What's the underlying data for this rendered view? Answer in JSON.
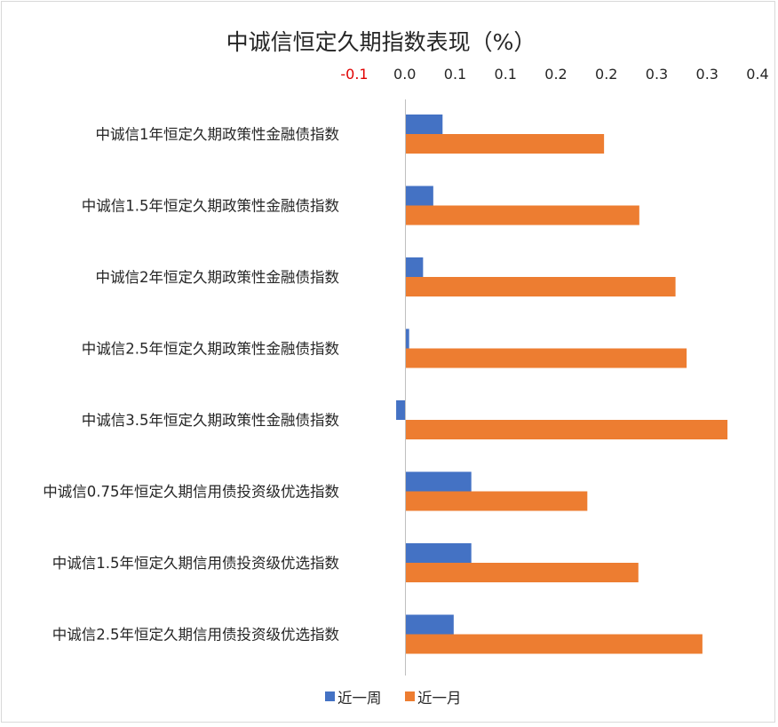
{
  "chart_data": {
    "type": "bar",
    "orientation": "horizontal",
    "title": "中诚信恒定久期指数表现（%）",
    "xlabel": "",
    "ylabel": "",
    "x_tick_labels": [
      "-0.1",
      "0.0",
      "0.1",
      "0.1",
      "0.2",
      "0.2",
      "0.3",
      "0.3",
      "0.4"
    ],
    "xlim": [
      -0.01,
      0.35
    ],
    "grid": false,
    "legend_position": "bottom",
    "categories": [
      "中诚信1年恒定久期政策性金融债指数",
      "中诚信1.5年恒定久期政策性金融债指数",
      "中诚信2年恒定久期政策性金融债指数",
      "中诚信2.5年恒定久期政策性金融债指数",
      "中诚信3.5年恒定久期政策性金融债指数",
      "中诚信0.75年恒定久期信用债投资级优选指数",
      "中诚信1.5年恒定久期信用债投资级优选指数",
      "中诚信2.5年恒定久期信用债投资级优选指数"
    ],
    "series": [
      {
        "name": "近一周",
        "color": "#4472c4",
        "values": [
          0.04,
          0.03,
          0.019,
          0.004,
          -0.01,
          0.071,
          0.071,
          0.052
        ]
      },
      {
        "name": "近一月",
        "color": "#ed7d31",
        "values": [
          0.214,
          0.252,
          0.291,
          0.303,
          0.347,
          0.196,
          0.251,
          0.32
        ]
      }
    ]
  }
}
